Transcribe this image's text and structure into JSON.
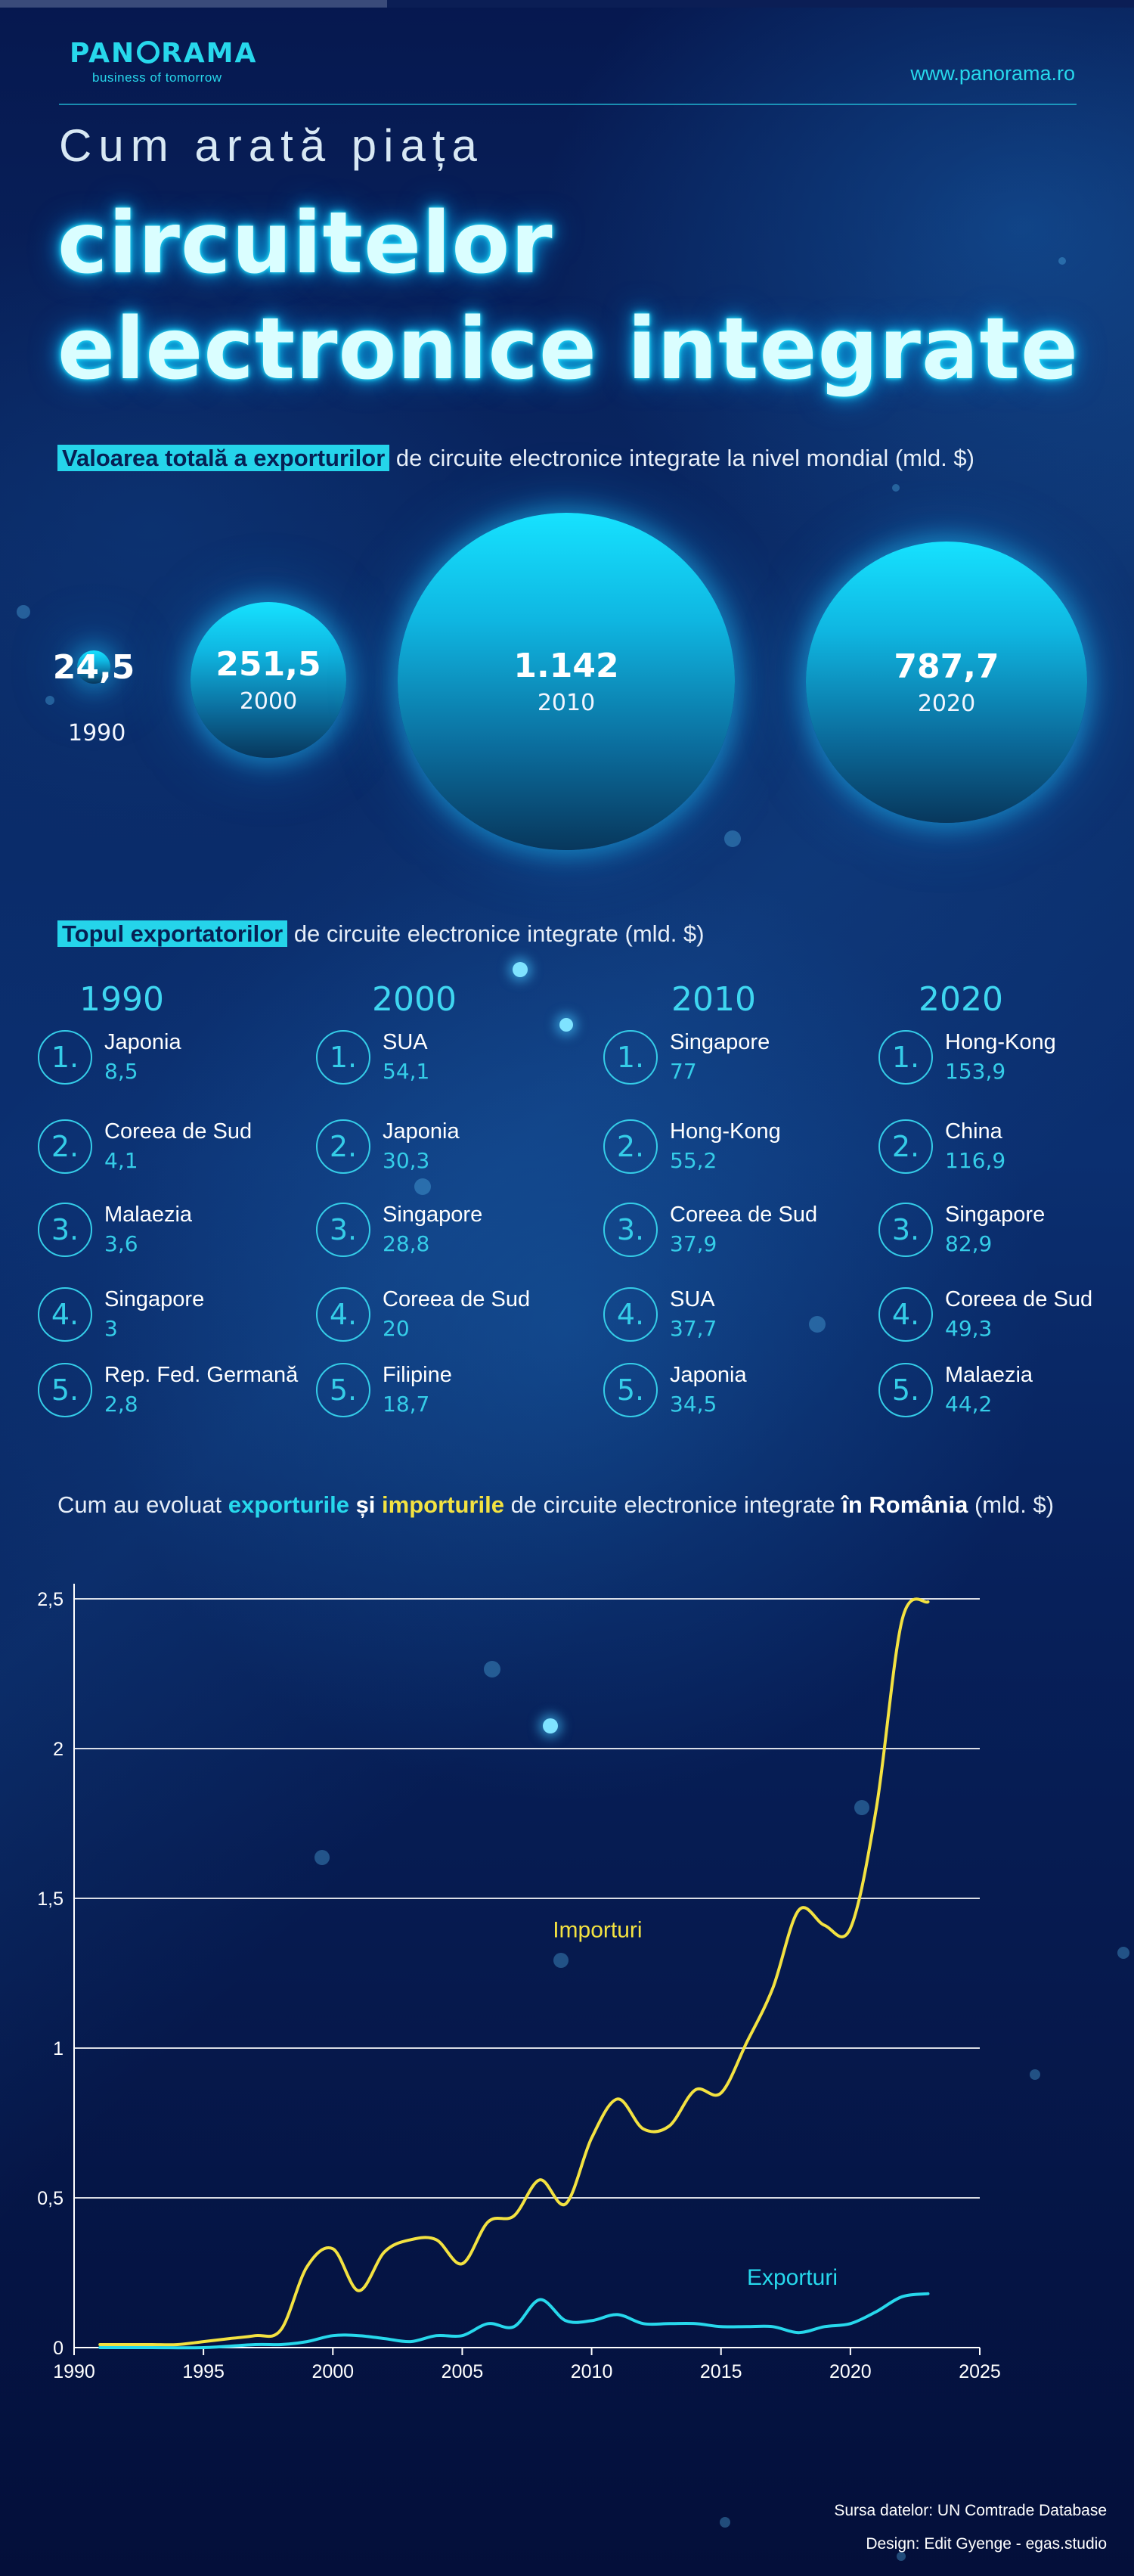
{
  "header": {
    "brand": "PAN",
    "brand_rest": "RAMA",
    "tagline": "business of tomorrow",
    "url": "www.panorama.ro"
  },
  "title": {
    "subtitle": "Cum arată piața",
    "line1": "circuitelor",
    "line2": "electronice integrate"
  },
  "exports_section": {
    "highlight": "Valoarea totală a exporturilor",
    "rest": " de circuite electronice integrate la nivel mondial (mld. $)",
    "bubbles": [
      {
        "year": "1990",
        "value": "24,5",
        "amount": 24.5
      },
      {
        "year": "2000",
        "value": "251,5",
        "amount": 251.5
      },
      {
        "year": "2010",
        "value": "1.142",
        "amount": 1142
      },
      {
        "year": "2020",
        "value": "787,7",
        "amount": 787.7
      }
    ]
  },
  "top_section": {
    "highlight": "Topul exportatorilor",
    "rest": " de circuite electronice integrate (mld. $)",
    "columns": [
      {
        "year": "1990",
        "items": [
          {
            "rank": "1.",
            "country": "Japonia",
            "value": "8,5"
          },
          {
            "rank": "2.",
            "country": "Coreea de Sud",
            "value": "4,1"
          },
          {
            "rank": "3.",
            "country": "Malaezia",
            "value": "3,6"
          },
          {
            "rank": "4.",
            "country": "Singapore",
            "value": "3"
          },
          {
            "rank": "5.",
            "country": "Rep. Fed. Germană",
            "value": "2,8"
          }
        ]
      },
      {
        "year": "2000",
        "items": [
          {
            "rank": "1.",
            "country": "SUA",
            "value": "54,1"
          },
          {
            "rank": "2.",
            "country": "Japonia",
            "value": "30,3"
          },
          {
            "rank": "3.",
            "country": "Singapore",
            "value": "28,8"
          },
          {
            "rank": "4.",
            "country": "Coreea de Sud",
            "value": "20"
          },
          {
            "rank": "5.",
            "country": "Filipine",
            "value": "18,7"
          }
        ]
      },
      {
        "year": "2010",
        "items": [
          {
            "rank": "1.",
            "country": "Singapore",
            "value": "77"
          },
          {
            "rank": "2.",
            "country": "Hong-Kong",
            "value": "55,2"
          },
          {
            "rank": "3.",
            "country": "Coreea de Sud",
            "value": "37,9"
          },
          {
            "rank": "4.",
            "country": "SUA",
            "value": "37,7"
          },
          {
            "rank": "5.",
            "country": "Japonia",
            "value": "34,5"
          }
        ]
      },
      {
        "year": "2020",
        "items": [
          {
            "rank": "1.",
            "country": "Hong-Kong",
            "value": "153,9"
          },
          {
            "rank": "2.",
            "country": "China",
            "value": "116,9"
          },
          {
            "rank": "3.",
            "country": "Singapore",
            "value": "82,9"
          },
          {
            "rank": "4.",
            "country": "Coreea de Sud",
            "value": "49,3"
          },
          {
            "rank": "5.",
            "country": "Malaezia",
            "value": "44,2"
          }
        ]
      }
    ]
  },
  "chart_section": {
    "t1": "Cum au evoluat ",
    "exp": "exporturile",
    "t2": " și ",
    "imp": "importurile",
    "t3": " de circuite electronice integrate ",
    "ro": "în România",
    "t4": " (mld. $)"
  },
  "chart_data": {
    "type": "line",
    "xlim": [
      1990,
      2025
    ],
    "ylim": [
      0,
      2.5
    ],
    "x_ticks": [
      "1990",
      "1995",
      "2000",
      "2005",
      "2010",
      "2015",
      "2020",
      "2025"
    ],
    "y_ticks": [
      "0",
      "0,5",
      "1",
      "1,5",
      "2",
      "2,5"
    ],
    "grid": "horizontal",
    "series": [
      {
        "name": "Importuri",
        "color": "#f3e241",
        "points": [
          [
            1991,
            0.01
          ],
          [
            1992,
            0.01
          ],
          [
            1993,
            0.01
          ],
          [
            1994,
            0.01
          ],
          [
            1995,
            0.02
          ],
          [
            1996,
            0.03
          ],
          [
            1997,
            0.04
          ],
          [
            1998,
            0.06
          ],
          [
            1999,
            0.27
          ],
          [
            2000,
            0.33
          ],
          [
            2001,
            0.19
          ],
          [
            2002,
            0.32
          ],
          [
            2003,
            0.36
          ],
          [
            2004,
            0.36
          ],
          [
            2005,
            0.28
          ],
          [
            2006,
            0.42
          ],
          [
            2007,
            0.44
          ],
          [
            2008,
            0.56
          ],
          [
            2009,
            0.48
          ],
          [
            2010,
            0.7
          ],
          [
            2011,
            0.83
          ],
          [
            2012,
            0.73
          ],
          [
            2013,
            0.74
          ],
          [
            2014,
            0.86
          ],
          [
            2015,
            0.85
          ],
          [
            2016,
            1.02
          ],
          [
            2017,
            1.2
          ],
          [
            2018,
            1.46
          ],
          [
            2019,
            1.41
          ],
          [
            2020,
            1.4
          ],
          [
            2021,
            1.8
          ],
          [
            2022,
            2.43
          ],
          [
            2023,
            2.49
          ]
        ]
      },
      {
        "name": "Exporturi",
        "color": "#27d8ec",
        "points": [
          [
            1991,
            0.0
          ],
          [
            1993,
            0.0
          ],
          [
            1995,
            0.0
          ],
          [
            1997,
            0.01
          ],
          [
            1998,
            0.01
          ],
          [
            1999,
            0.02
          ],
          [
            2000,
            0.04
          ],
          [
            2001,
            0.04
          ],
          [
            2002,
            0.03
          ],
          [
            2003,
            0.02
          ],
          [
            2004,
            0.04
          ],
          [
            2005,
            0.04
          ],
          [
            2006,
            0.08
          ],
          [
            2007,
            0.07
          ],
          [
            2008,
            0.16
          ],
          [
            2009,
            0.09
          ],
          [
            2010,
            0.09
          ],
          [
            2011,
            0.11
          ],
          [
            2012,
            0.08
          ],
          [
            2013,
            0.08
          ],
          [
            2014,
            0.08
          ],
          [
            2015,
            0.07
          ],
          [
            2016,
            0.07
          ],
          [
            2017,
            0.07
          ],
          [
            2018,
            0.05
          ],
          [
            2019,
            0.07
          ],
          [
            2020,
            0.08
          ],
          [
            2021,
            0.12
          ],
          [
            2022,
            0.17
          ],
          [
            2023,
            0.18
          ]
        ]
      }
    ]
  },
  "footer": {
    "source": "Sursa datelor: UN Comtrade Database",
    "design": "Design: Edit Gyenge - egas.studio"
  },
  "colors": {
    "accent": "#27d8ec",
    "imports": "#f3e241",
    "background": "#04113f"
  }
}
